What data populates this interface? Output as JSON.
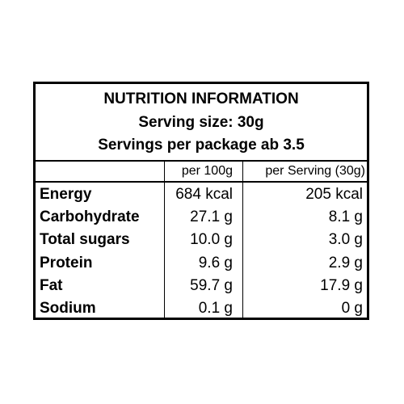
{
  "header": {
    "title": "NUTRITION INFORMATION",
    "serving_size": "Serving size: 30g",
    "servings_per_package": "Servings per package ab 3.5"
  },
  "columns": {
    "per_100g": "per 100g",
    "per_serving": "per Serving (30g)"
  },
  "rows": [
    {
      "name": "Energy",
      "per_100g": "684 kcal",
      "per_serving": "205 kcal"
    },
    {
      "name": "Carbohydrate",
      "per_100g": "27.1 g",
      "per_serving": "8.1 g"
    },
    {
      "name": "Total sugars",
      "per_100g": "10.0 g",
      "per_serving": "3.0 g"
    },
    {
      "name": "Protein",
      "per_100g": "9.6 g",
      "per_serving": "2.9 g"
    },
    {
      "name": "Fat",
      "per_100g": "59.7 g",
      "per_serving": "17.9 g"
    },
    {
      "name": "Sodium",
      "per_100g": "0.1 g",
      "per_serving": "0 g"
    }
  ]
}
